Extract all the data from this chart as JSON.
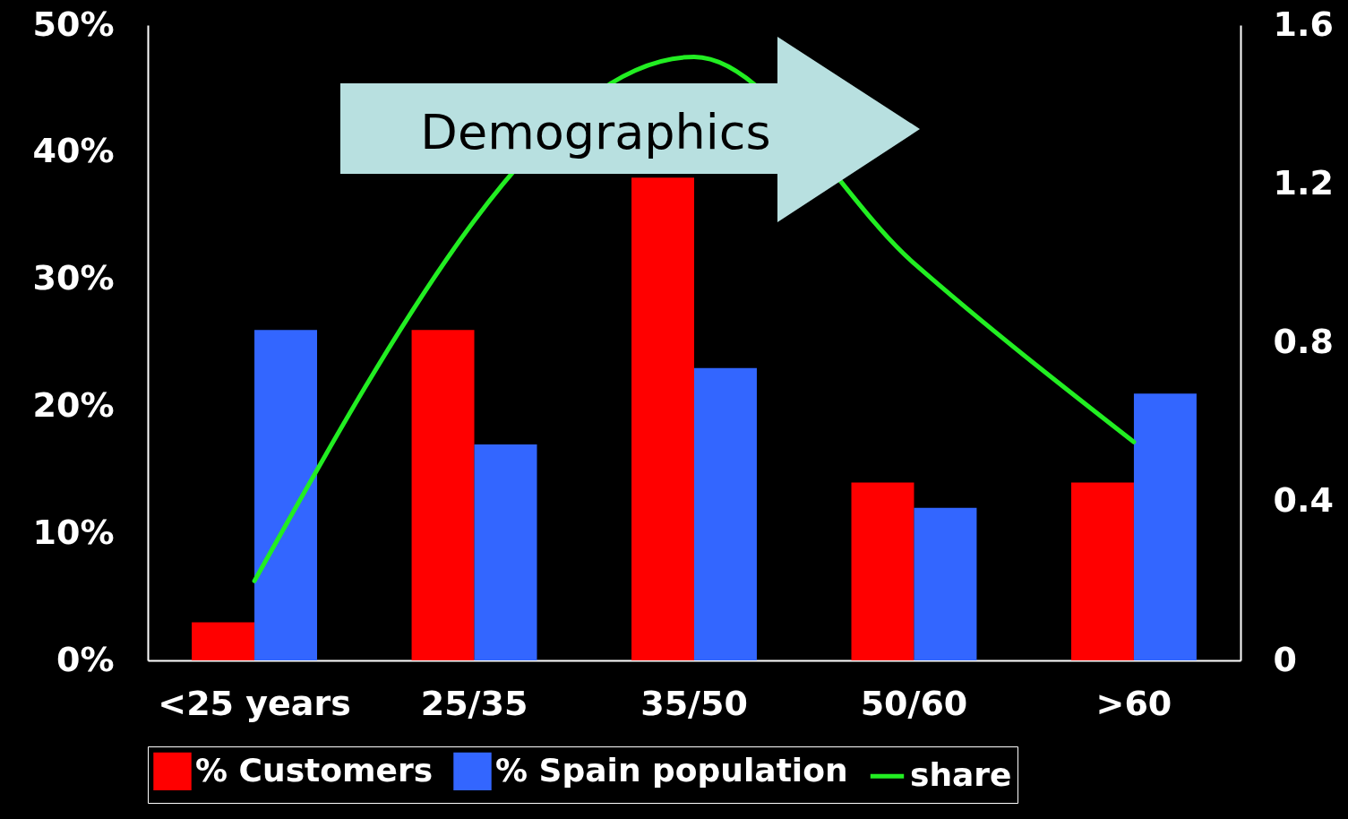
{
  "chart_data": {
    "type": "bar",
    "categories": [
      "<25 years",
      "25/35",
      "35/50",
      "50/60",
      ">60"
    ],
    "series": [
      {
        "name": "% Customers",
        "color": "#ff0000",
        "values": [
          3,
          26,
          38,
          14,
          14
        ]
      },
      {
        "name": "% Spain population",
        "color": "#3366ff",
        "values": [
          26,
          17,
          23,
          12,
          21
        ]
      },
      {
        "name": "share",
        "type": "line",
        "axis": "y2",
        "color": "#22ee22",
        "values": [
          0.2,
          null,
          1.52,
          1.0,
          0.55
        ]
      }
    ],
    "ylim": [
      0,
      50
    ],
    "yticks": [
      {
        "value": 0,
        "label": "0%"
      },
      {
        "value": 10,
        "label": "10%"
      },
      {
        "value": 20,
        "label": "20%"
      },
      {
        "value": 30,
        "label": "30%"
      },
      {
        "value": 40,
        "label": "40%"
      },
      {
        "value": 50,
        "label": "50%"
      }
    ],
    "y2lim": [
      0,
      1.6
    ],
    "y2ticks": [
      0,
      0.4,
      0.8,
      1.2,
      1.6
    ],
    "annotations": [
      "Demographics"
    ],
    "legend": "bottom",
    "grid": false
  }
}
